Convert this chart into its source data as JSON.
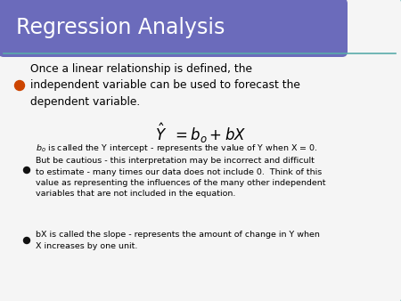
{
  "title": "Regression Analysis",
  "title_color": "#ffffff",
  "title_bg_color": "#6B6BBB",
  "slide_bg_color": "#f5f5f5",
  "border_color": "#5aabaa",
  "bullet1_text": "Once a linear relationship is defined, the\nindependent variable can be used to forecast the\ndependent variable.",
  "bullet1_color": "#000000",
  "bullet1_dot_color": "#cc4400",
  "formula_latex": "$\\hat{Y}\\;\\; = b_o + bX$",
  "formula_color": "#000000",
  "sub_bullet1_text": "$b_o$ is called the Y intercept - represents the value of Y when X = 0.\nBut be cautious - this interpretation may be incorrect and difficult\nto estimate - many times our data does not include 0.  Think of this\nvalue as representing the influences of the many other independent\nvariables that are not included in the equation.",
  "sub_bullet2_text": "bX is called the slope - represents the amount of change in Y when\nX increases by one unit.",
  "sub_bullet_color": "#000000",
  "figwidth": 4.5,
  "figheight": 3.38,
  "dpi": 100
}
